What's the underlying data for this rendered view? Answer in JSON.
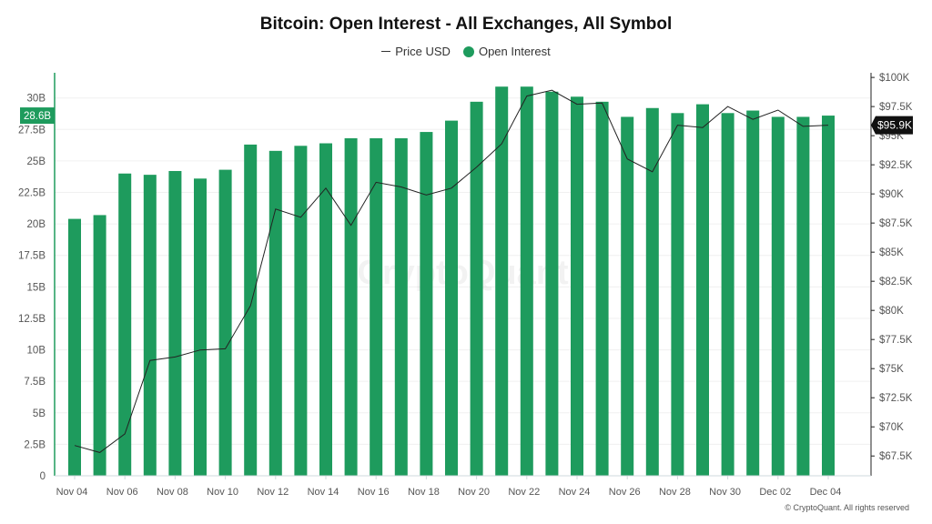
{
  "chart_data": {
    "type": "bar",
    "title": "Bitcoin: Open Interest - All Exchanges, All Symbol",
    "x": [
      "Nov 04",
      "Nov 05",
      "Nov 06",
      "Nov 07",
      "Nov 08",
      "Nov 09",
      "Nov 10",
      "Nov 11",
      "Nov 12",
      "Nov 13",
      "Nov 14",
      "Nov 15",
      "Nov 16",
      "Nov 17",
      "Nov 18",
      "Nov 19",
      "Nov 20",
      "Nov 21",
      "Nov 22",
      "Nov 23",
      "Nov 24",
      "Nov 25",
      "Nov 26",
      "Nov 27",
      "Nov 28",
      "Nov 29",
      "Nov 30",
      "Dec 01",
      "Dec 02",
      "Dec 03",
      "Dec 04"
    ],
    "x_tick_labels": [
      "Nov 04",
      "Nov 06",
      "Nov 08",
      "Nov 10",
      "Nov 12",
      "Nov 14",
      "Nov 16",
      "Nov 18",
      "Nov 20",
      "Nov 22",
      "Nov 24",
      "Nov 26",
      "Nov 28",
      "Nov 30",
      "Dec 02",
      "Dec 04"
    ],
    "series": [
      {
        "name": "Open Interest",
        "type": "bar",
        "axis": "left",
        "color": "#1e9b5d",
        "unit": "B",
        "values": [
          20.4,
          20.7,
          24.0,
          23.9,
          24.2,
          23.6,
          24.3,
          26.3,
          25.8,
          26.2,
          26.4,
          26.8,
          26.8,
          26.8,
          27.3,
          28.2,
          29.7,
          30.9,
          30.9,
          30.5,
          30.1,
          29.7,
          28.5,
          29.2,
          28.8,
          29.5,
          28.8,
          29.0,
          28.5,
          28.5,
          28.6
        ]
      },
      {
        "name": "Price USD",
        "type": "line",
        "axis": "right",
        "color": "#222222",
        "unit": "USD",
        "values": [
          68400,
          67800,
          69400,
          75700,
          76000,
          76600,
          76700,
          80400,
          88700,
          88000,
          90500,
          87300,
          91000,
          90600,
          89900,
          90500,
          92300,
          94300,
          98400,
          98900,
          97700,
          97800,
          93000,
          91900,
          95900,
          95700,
          97500,
          96400,
          97200,
          95800,
          95900
        ]
      }
    ],
    "left_axis": {
      "ylim": [
        0,
        32
      ],
      "ticks": [
        "0",
        "2.5B",
        "5B",
        "7.5B",
        "10B",
        "12.5B",
        "15B",
        "17.5B",
        "20B",
        "22.5B",
        "25B",
        "27.5B",
        "30B"
      ],
      "tick_values": [
        0,
        2.5,
        5,
        7.5,
        10,
        12.5,
        15,
        17.5,
        20,
        22.5,
        25,
        27.5,
        30
      ]
    },
    "right_axis": {
      "ylim": [
        65800,
        100400
      ],
      "ticks": [
        "$67.5K",
        "$70K",
        "$72.5K",
        "$75K",
        "$77.5K",
        "$80K",
        "$82.5K",
        "$85K",
        "$87.5K",
        "$90K",
        "$92.5K",
        "$95K",
        "$97.5K",
        "$100K"
      ],
      "tick_values": [
        67500,
        70000,
        72500,
        75000,
        77500,
        80000,
        82500,
        85000,
        87500,
        90000,
        92500,
        95000,
        97500,
        100000
      ]
    },
    "left_badge": "28.6B",
    "right_badge": "$95.9K",
    "grid": true,
    "legend_position": "top-center"
  },
  "legend": {
    "price_label": "Price USD",
    "oi_label": "Open Interest"
  },
  "watermark": "CryptoQuant",
  "footer": "© CryptoQuant. All rights reserved"
}
